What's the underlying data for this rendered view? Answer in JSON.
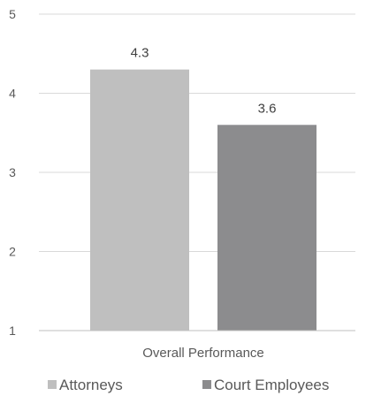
{
  "chart_data": {
    "type": "bar",
    "categories": [
      "Overall Performance"
    ],
    "series": [
      {
        "name": "Attorneys",
        "values": [
          4.3
        ],
        "color": "#bfbfbf"
      },
      {
        "name": "Court Employees",
        "values": [
          3.6
        ],
        "color": "#8c8c8e"
      }
    ],
    "ylim": [
      1,
      5
    ],
    "yticks": [
      "1",
      "2",
      "3",
      "4",
      "5"
    ],
    "data_labels": [
      "4.3",
      "3.6"
    ],
    "grid": true,
    "legend_position": "bottom-left"
  }
}
